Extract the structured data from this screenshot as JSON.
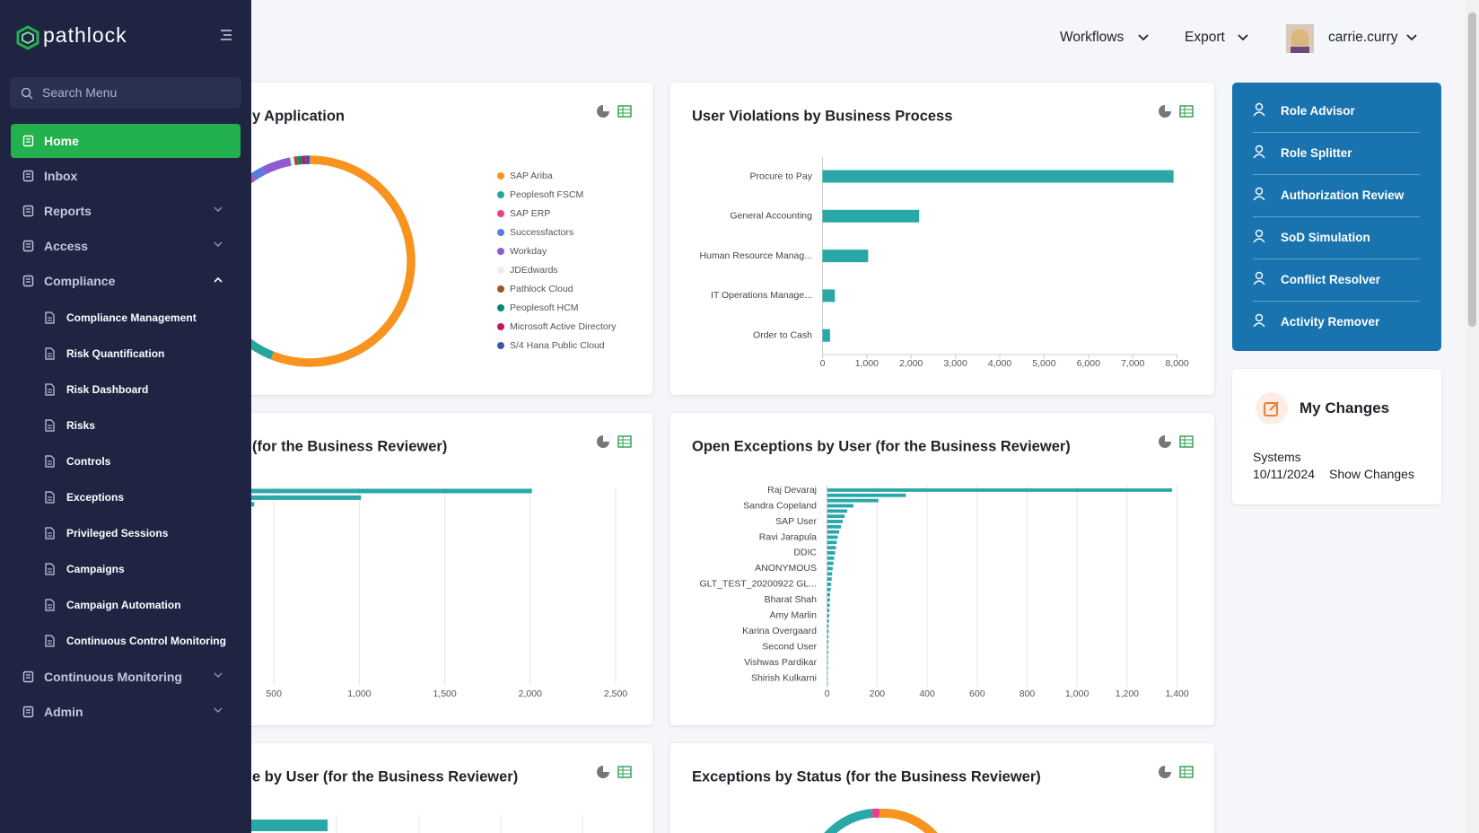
{
  "sidebar": {
    "brand": "pathlock",
    "search": "Search Menu",
    "nav": [
      {
        "label": "Home"
      },
      {
        "label": "Inbox"
      },
      {
        "label": "Reports"
      },
      {
        "label": "Access"
      },
      {
        "label": "Compliance",
        "children": [
          "Compliance Management",
          "Risk Quantification",
          "Risk Dashboard",
          "Risks",
          "Controls",
          "Exceptions",
          "Privileged Sessions",
          "Campaigns",
          "Campaign Automation",
          "Continuous Control Monitoring"
        ]
      },
      {
        "label": "Continuous Monitoring"
      },
      {
        "label": "Admin"
      }
    ]
  },
  "header": {
    "menus": [
      "Workflows",
      "Export"
    ],
    "user": "carrie.curry"
  },
  "cards": [
    {
      "title": "y Application",
      "chart_data": {
        "type": "pie",
        "donut": true,
        "categories": [
          "SAP Ariba",
          "Peoplesoft FSCM",
          "SAP ERP",
          "Successfactors",
          "Workday",
          "JDEdwards",
          "Pathlock Cloud",
          "Peoplesoft HCM",
          "Microsoft Active Directory",
          "S/4 Hana Public Cloud"
        ],
        "values": [
          56,
          34,
          0.5,
          2,
          4.5,
          0.6,
          0.6,
          0.6,
          0.6,
          0.6
        ],
        "colors": [
          "#f7931e",
          "#26a69a",
          "#e83e8c",
          "#5b7be0",
          "#8e5bd0",
          "#ececec",
          "#a0522d",
          "#00897b",
          "#c2185b",
          "#3f51b5"
        ]
      }
    },
    {
      "title": "User Violations by Business Process",
      "chart_data": {
        "type": "bar",
        "orientation": "horizontal",
        "color": "#2aa8a8",
        "grid": false,
        "categories": [
          "Procure to Pay",
          "General Accounting",
          "Human Resource Manag...",
          "IT Operations Manage...",
          "Order to Cash"
        ],
        "values": [
          7920,
          2180,
          1030,
          280,
          170
        ],
        "xlim": [
          0,
          8000
        ],
        "xticks": [
          0,
          {
            "value": 1000,
            "label": "1,000"
          },
          {
            "value": 2000,
            "label": "2,000"
          },
          {
            "value": 3000,
            "label": "3,000"
          },
          {
            "value": 4000,
            "label": "4,000"
          },
          {
            "value": 5000,
            "label": "5,000"
          },
          {
            "value": 6000,
            "label": "6,000"
          },
          {
            "value": 7000,
            "label": "7,000"
          },
          {
            "value": 8000,
            "label": "8,000"
          }
        ]
      }
    },
    {
      "title": "(for the Business Reviewer)",
      "chart_data": {
        "type": "bar",
        "orientation": "horizontal",
        "color": "#2aa8a8",
        "grid": true,
        "categories": [
          null,
          null,
          null
        ],
        "values": [
          2010,
          1010,
          385
        ],
        "xlim": [
          0,
          2500
        ],
        "xticks": [
          500,
          {
            "value": 1000,
            "label": "1,000"
          },
          {
            "value": 1500,
            "label": "1,500"
          },
          {
            "value": 2000,
            "label": "2,000"
          },
          {
            "value": 2500,
            "label": "2,500"
          }
        ]
      }
    },
    {
      "title": "Open Exceptions by User (for the Business Reviewer)",
      "chart_data": {
        "type": "bar",
        "orientation": "horizontal",
        "color": "#2aa8a8",
        "grid": true,
        "categories": [
          "Raj Devaraj",
          null,
          null,
          "Sandra Copeland",
          null,
          null,
          "SAP User",
          null,
          null,
          "Ravi Jarapula",
          null,
          null,
          "DDIC",
          null,
          null,
          "ANONYMOUS",
          null,
          null,
          "GLT_TEST_20200922 GL...",
          null,
          null,
          "Bharat Shah",
          null,
          null,
          "Amy Marlin",
          null,
          null,
          "Karina Overgaard",
          null,
          null,
          "Second User",
          null,
          null,
          "Vishwas Pardikar",
          null,
          null,
          "Shirish Kulkarni",
          null,
          null
        ],
        "values": [
          1380,
          315,
          205,
          105,
          80,
          70,
          62,
          55,
          48,
          42,
          38,
          35,
          32,
          28,
          25,
          22,
          20,
          18,
          16,
          14,
          12,
          11,
          10,
          9,
          8,
          7,
          6,
          6,
          5,
          5,
          4,
          4,
          3,
          3,
          3,
          2,
          2,
          2,
          1
        ],
        "xlim": [
          0,
          1400
        ],
        "xticks": [
          0,
          200,
          400,
          600,
          800,
          {
            "value": 1000,
            "label": "1,000"
          },
          {
            "value": 1200,
            "label": "1,200"
          },
          {
            "value": 1400,
            "label": "1,400"
          }
        ]
      }
    },
    {
      "title": "e by User (for the Business Reviewer)"
    },
    {
      "title": "Exceptions by Status (for the Business Reviewer)"
    }
  ],
  "quick_links": [
    "Role Advisor",
    "Role Splitter",
    "Authorization Review",
    "SoD Simulation",
    "Conflict Resolver",
    "Activity Remover"
  ],
  "my_changes": {
    "title": "My Changes",
    "label": "Systems",
    "date": "10/11/2024",
    "action": "Show Changes"
  }
}
